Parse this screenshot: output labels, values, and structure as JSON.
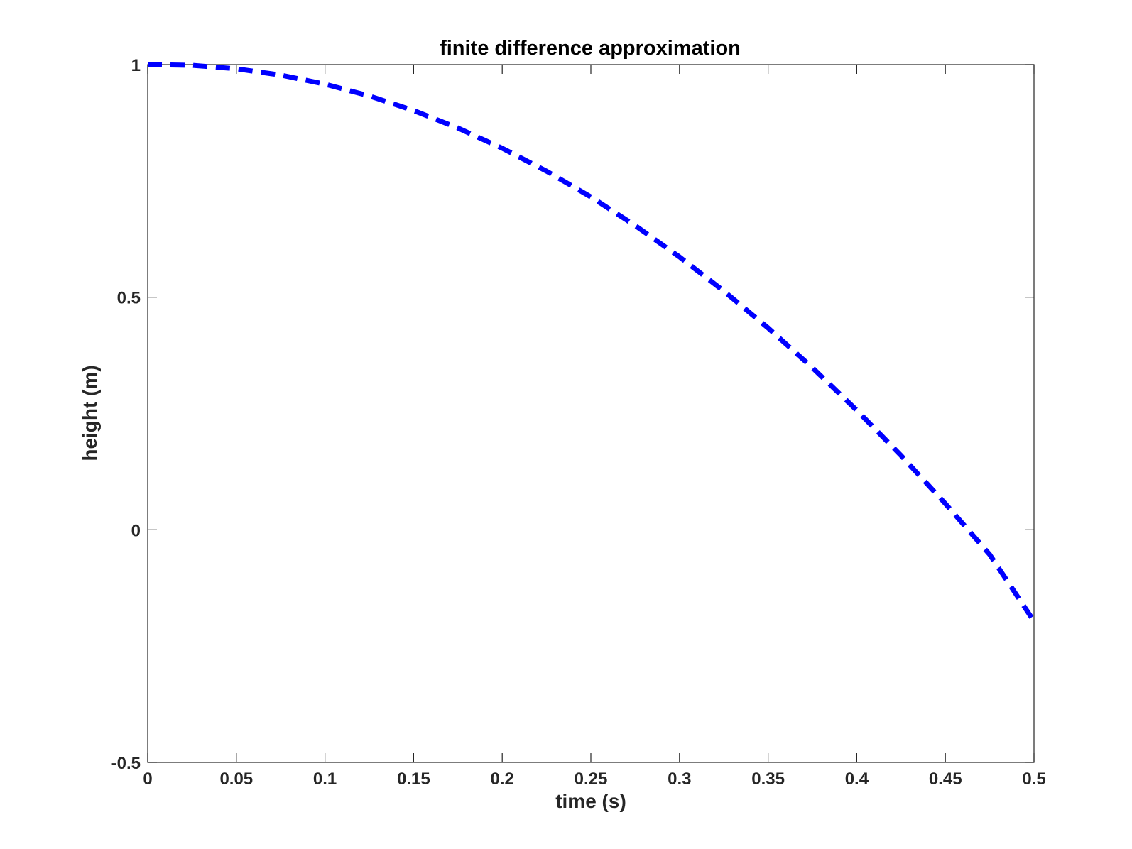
{
  "chart_data": {
    "type": "line",
    "title": "finite difference approximation",
    "xlabel": "time (s)",
    "ylabel": "height (m)",
    "xlim": [
      0,
      0.5
    ],
    "ylim": [
      -0.5,
      1
    ],
    "xticks": [
      0,
      0.05,
      0.1,
      0.15,
      0.2,
      0.25,
      0.3,
      0.35,
      0.4,
      0.45,
      0.5
    ],
    "xtick_labels": [
      "0",
      "0.05",
      "0.1",
      "0.15",
      "0.2",
      "0.25",
      "0.3",
      "0.35",
      "0.4",
      "0.45",
      "0.5"
    ],
    "yticks": [
      -0.5,
      0,
      0.5,
      1
    ],
    "ytick_labels": [
      "-0.5",
      "0",
      "0.5",
      "1"
    ],
    "grid": false,
    "series": [
      {
        "color": "#0000ff",
        "line_style": "dashed",
        "x": [
          0,
          0.025,
          0.05,
          0.075,
          0.1,
          0.125,
          0.15,
          0.175,
          0.2,
          0.225,
          0.25,
          0.275,
          0.3,
          0.325,
          0.35,
          0.375,
          0.4,
          0.425,
          0.45,
          0.475,
          0.5
        ],
        "y": [
          1.0,
          0.9985,
          0.991,
          0.9776,
          0.9581,
          0.9327,
          0.9012,
          0.8638,
          0.8203,
          0.7709,
          0.7155,
          0.6541,
          0.5866,
          0.5132,
          0.4338,
          0.3484,
          0.257,
          0.1596,
          0.0562,
          -0.0532,
          -0.1966
        ]
      }
    ]
  }
}
